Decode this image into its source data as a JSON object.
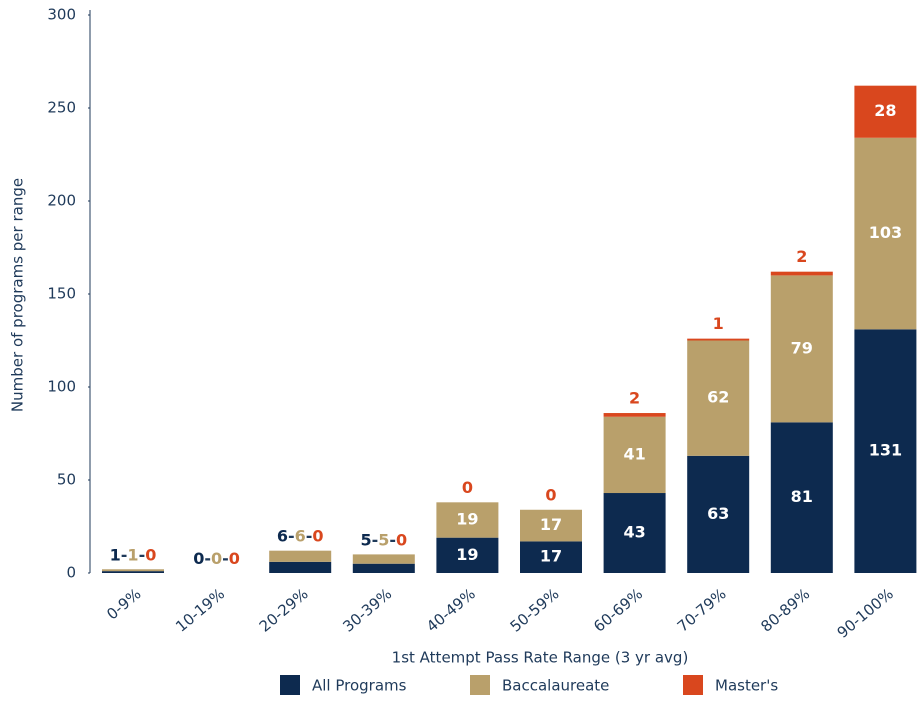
{
  "chart_data": {
    "type": "stacked_bar",
    "x_label": "1st Attempt Pass Rate Range (3 yr avg)",
    "y_label": "Number of programs per range",
    "categories": [
      "0-9%",
      "10-19%",
      "20-29%",
      "30-39%",
      "40-49%",
      "50-59%",
      "60-69%",
      "70-79%",
      "80-89%",
      "90-100%"
    ],
    "series": [
      {
        "name": "All Programs",
        "color": "#0d2a4f",
        "values": [
          1,
          0,
          6,
          5,
          19,
          17,
          43,
          63,
          81,
          131
        ]
      },
      {
        "name": "Baccalaureate",
        "color": "#b9a06b",
        "values": [
          1,
          0,
          6,
          5,
          19,
          17,
          41,
          62,
          79,
          103
        ]
      },
      {
        "name": "Master's",
        "color": "#d9471e",
        "values": [
          0,
          0,
          0,
          0,
          0,
          0,
          2,
          1,
          2,
          28
        ]
      }
    ],
    "label_separator": "-",
    "ylim": [
      0,
      300
    ],
    "yticks": [
      0,
      50,
      100,
      150,
      200,
      250,
      300
    ],
    "grid": false,
    "legend": "bottom"
  }
}
